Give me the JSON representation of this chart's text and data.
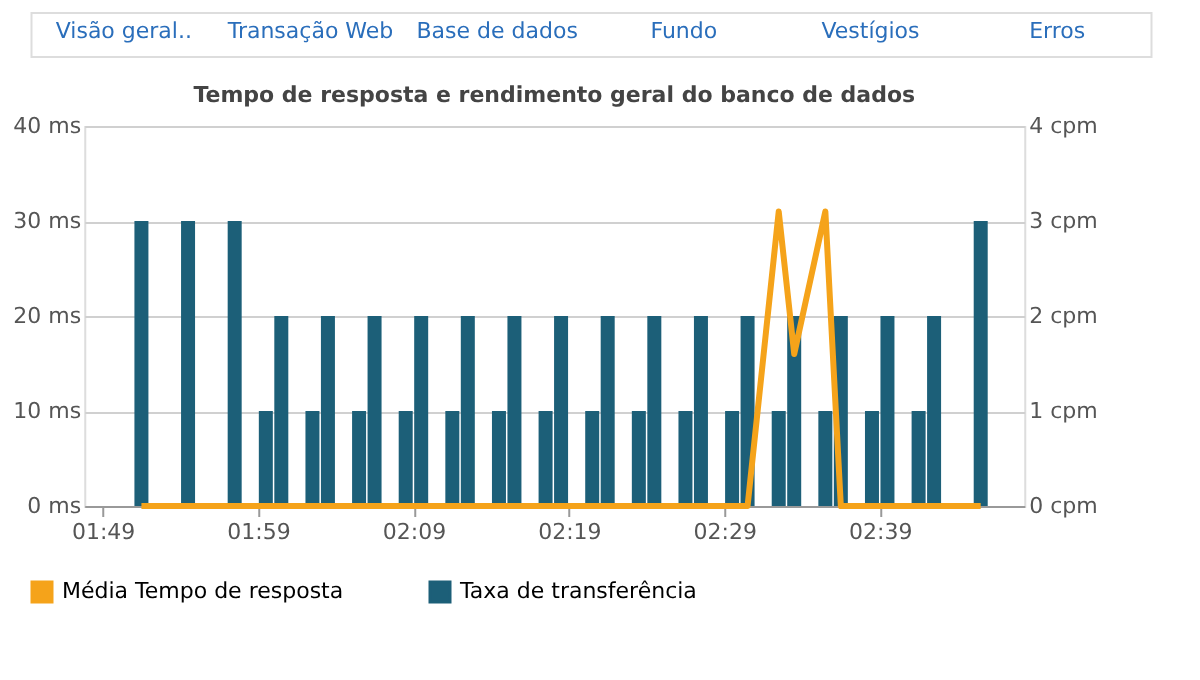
{
  "chart_data": {
    "type": "bar",
    "title": "Tempo de resposta e rendimento geral do banco de dados",
    "annotations": [
      "Visão geral..",
      "Transação Web",
      "Base de dados",
      "Fundo",
      "Vestígios",
      "Erros"
    ],
    "series": [
      {
        "name": "Média Tempo de resposta",
        "type": "line",
        "color": "#f5a31a",
        "x": [
          1.8583,
          2.5083,
          2.5417,
          2.5583,
          2.5917,
          2.6083,
          2.7583
        ],
        "values": [
          0,
          0,
          31,
          16,
          31,
          0,
          0
        ]
      },
      {
        "name": "Taxa de transferência",
        "axis": "y2",
        "color": "#1c5f78",
        "x": [
          1.8583,
          1.9083,
          1.9583,
          1.9917,
          2.0083,
          2.0417,
          2.0583,
          2.0917,
          2.1083,
          2.1417,
          2.1583,
          2.1917,
          2.2083,
          2.2417,
          2.2583,
          2.2917,
          2.3083,
          2.3417,
          2.3583,
          2.3917,
          2.4083,
          2.4417,
          2.4583,
          2.4917,
          2.5083,
          2.5417,
          2.5583,
          2.5917,
          2.6083,
          2.6417,
          2.6583,
          2.6917,
          2.7083,
          2.7583
        ],
        "values": [
          3,
          3,
          3,
          1,
          2,
          1,
          2,
          1,
          2,
          1,
          2,
          1,
          2,
          1,
          2,
          1,
          2,
          1,
          2,
          1,
          2,
          1,
          2,
          1,
          2,
          1,
          2,
          1,
          2,
          1,
          2,
          1,
          2,
          3
        ]
      }
    ],
    "xlim": [
      1.797,
      2.805
    ],
    "xticks": [
      {
        "value": 1.8167,
        "label": "01:49"
      },
      {
        "value": 1.9833,
        "label": "01:59"
      },
      {
        "value": 2.15,
        "label": "02:09"
      },
      {
        "value": 2.3167,
        "label": "02:19"
      },
      {
        "value": 2.4833,
        "label": "02:29"
      },
      {
        "value": 2.65,
        "label": "02:39"
      }
    ],
    "ylim": [
      0,
      40
    ],
    "yticks": [
      {
        "value": 0,
        "label": "0 ms"
      },
      {
        "value": 10,
        "label": "10 ms"
      },
      {
        "value": 20,
        "label": "20 ms"
      },
      {
        "value": 30,
        "label": "30 ms"
      },
      {
        "value": 40,
        "label": "40 ms"
      }
    ],
    "y2lim": [
      0,
      4
    ],
    "y2ticks": [
      {
        "value": 0,
        "label": "0 cpm"
      },
      {
        "value": 1,
        "label": "1 cpm"
      },
      {
        "value": 2,
        "label": "2 cpm"
      },
      {
        "value": 3,
        "label": "3 cpm"
      },
      {
        "value": 4,
        "label": "4 cpm"
      }
    ],
    "grid": "y",
    "legend": "bottom",
    "marker": "none",
    "line_style": "solid"
  }
}
